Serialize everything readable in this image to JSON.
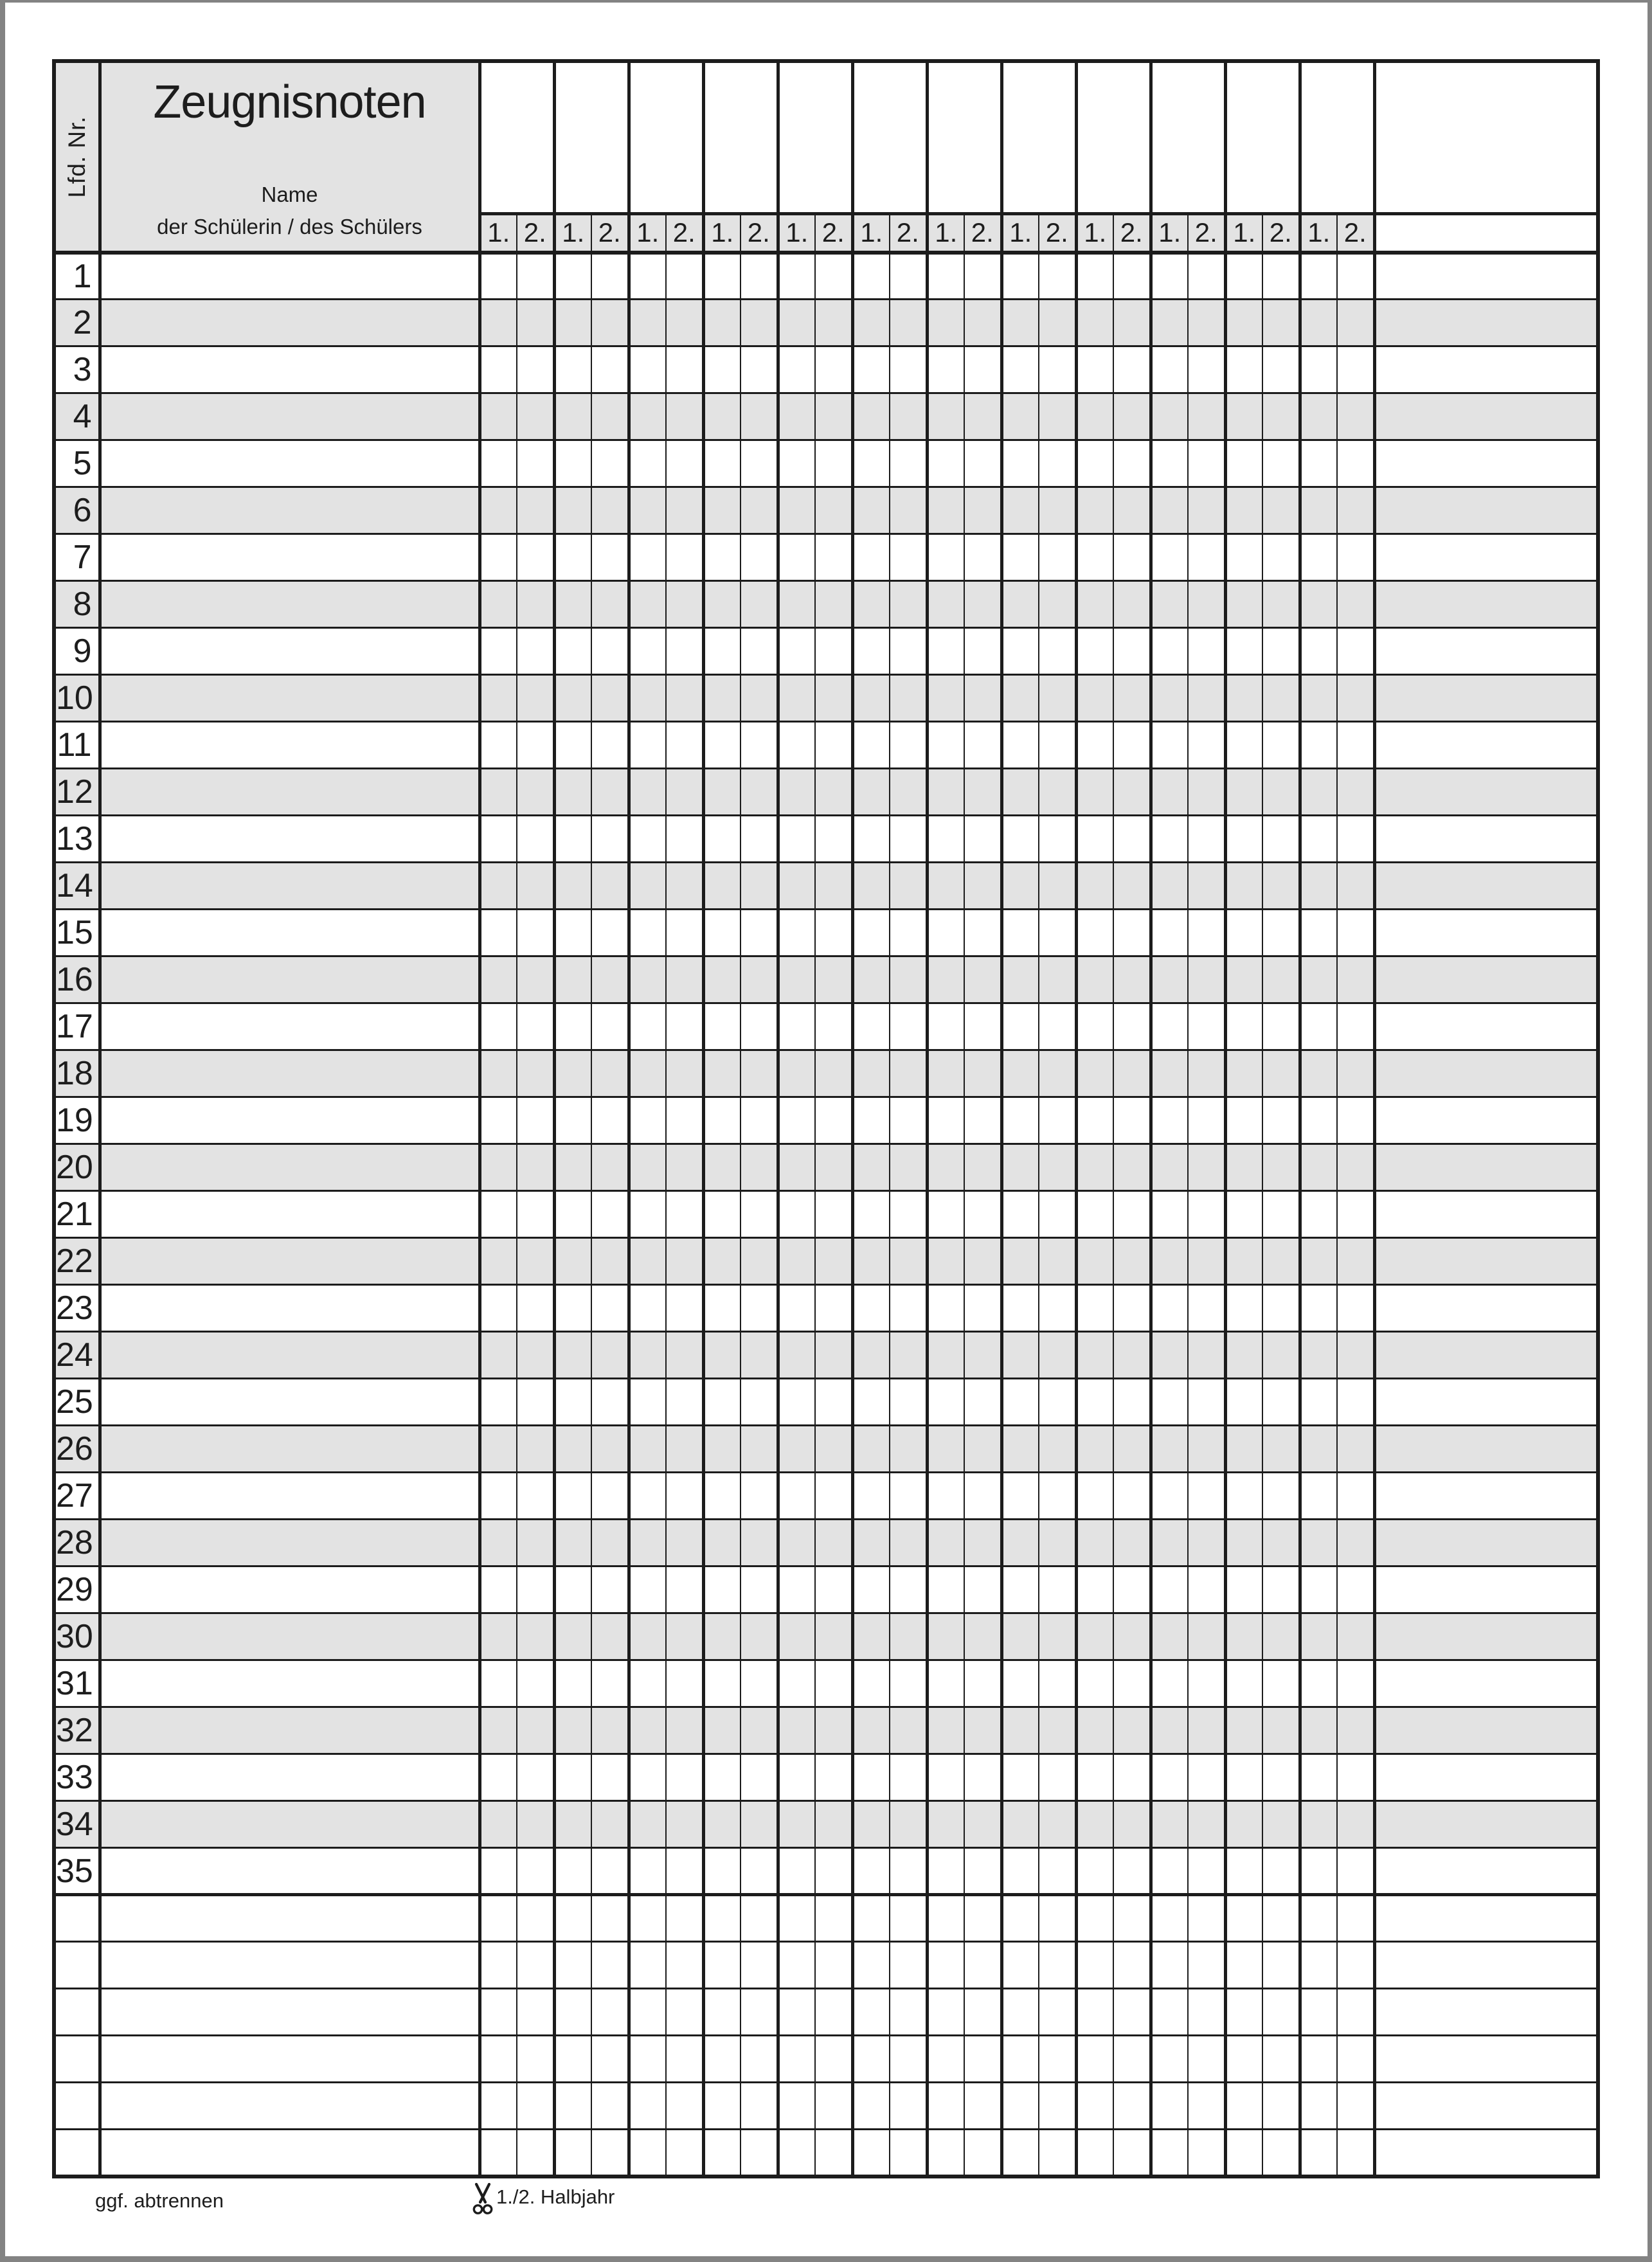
{
  "page": {
    "lfd_label": "Lfd. Nr.",
    "title": "Zeugnisnoten",
    "name_label_line1": "Name",
    "name_label_line2": "der Schülerin / des Schülers"
  },
  "header": {
    "half_year_groups": [
      {
        "first": "1.",
        "second": "2."
      },
      {
        "first": "1.",
        "second": "2."
      },
      {
        "first": "1.",
        "second": "2."
      },
      {
        "first": "1.",
        "second": "2."
      },
      {
        "first": "1.",
        "second": "2."
      },
      {
        "first": "1.",
        "second": "2."
      },
      {
        "first": "1.",
        "second": "2."
      },
      {
        "first": "1.",
        "second": "2."
      },
      {
        "first": "1.",
        "second": "2."
      },
      {
        "first": "1.",
        "second": "2."
      },
      {
        "first": "1.",
        "second": "2."
      },
      {
        "first": "1.",
        "second": "2."
      }
    ]
  },
  "rows": {
    "numbers": [
      "1",
      "2",
      "3",
      "4",
      "5",
      "6",
      "7",
      "8",
      "9",
      "10",
      "11",
      "12",
      "13",
      "14",
      "15",
      "16",
      "17",
      "18",
      "19",
      "20",
      "21",
      "22",
      "23",
      "24",
      "25",
      "26",
      "27",
      "28",
      "29",
      "30",
      "31",
      "32",
      "33",
      "34",
      "35"
    ],
    "extra_blank_rows": 6
  },
  "footer": {
    "left_note": "ggf. abtrennen",
    "scissors_icon": "scissors-up",
    "right_note": "1./2. Halbjahr"
  },
  "colors": {
    "grid_line": "#1c1c1c",
    "shaded_fill": "#e3e3e3",
    "page_frame": "#838383",
    "text": "#1d1d1d"
  }
}
